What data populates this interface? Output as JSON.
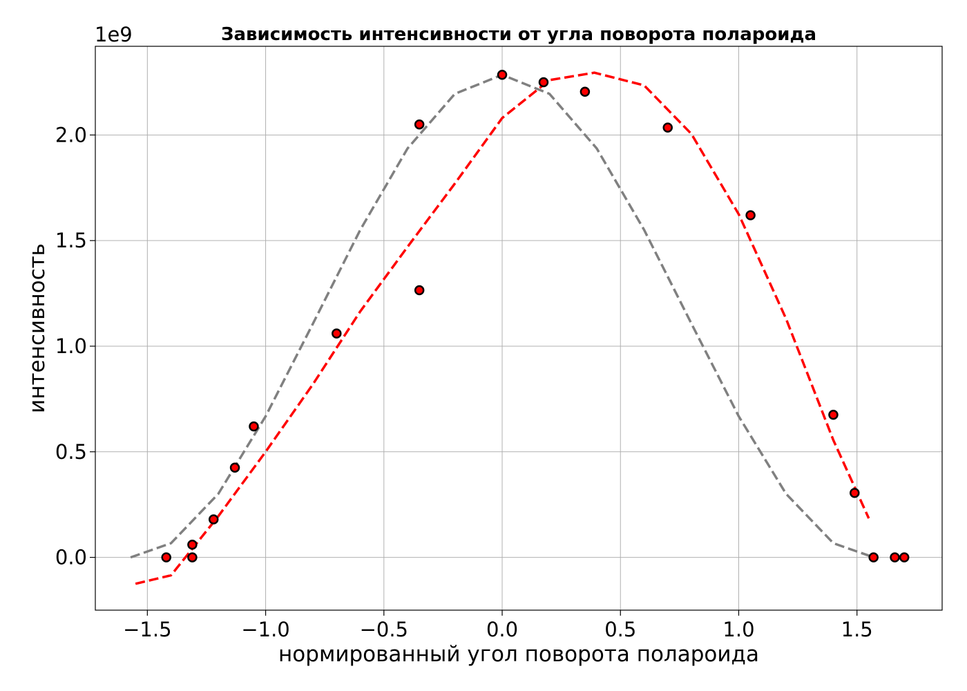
{
  "chart_data": {
    "type": "scatter",
    "title": "Зависимость интенсивности от угла поворота полароида",
    "xlabel": "нормированный угол поворота полароида",
    "ylabel": "интенсивность",
    "y_offset_text": "1e9",
    "y_scale": 1000000000,
    "xlim": [
      -1.72,
      1.86
    ],
    "ylim": [
      -0.25,
      2.42
    ],
    "x_ticks": [
      -1.5,
      -1.0,
      -0.5,
      0.0,
      0.5,
      1.0,
      1.5
    ],
    "x_tick_labels": [
      "−1.5",
      "−1.0",
      "−0.5",
      "0.0",
      "0.5",
      "1.0",
      "1.5"
    ],
    "y_ticks": [
      0.0,
      0.5,
      1.0,
      1.5,
      2.0
    ],
    "y_tick_labels": [
      "0.0",
      "0.5",
      "1.0",
      "1.5",
      "2.0"
    ],
    "grid": true,
    "series": [
      {
        "kind": "points",
        "color": "#ff0000",
        "edge_color": "#000000",
        "x": [
          -1.42,
          -1.31,
          -1.31,
          -1.22,
          -1.13,
          -1.05,
          -0.7,
          -0.35,
          -0.35,
          0.0,
          0.175,
          0.35,
          0.7,
          1.05,
          1.4,
          1.49,
          1.57,
          1.66,
          1.7
        ],
        "y": [
          0.0,
          0.06,
          0.0,
          0.18,
          0.425,
          0.62,
          1.06,
          2.05,
          1.265,
          2.285,
          2.25,
          2.205,
          2.035,
          1.62,
          0.675,
          0.305,
          0.0,
          0.0,
          0.0
        ]
      },
      {
        "kind": "dashed-curve",
        "color": "#808080",
        "x": [
          -1.5708,
          -1.4,
          -1.2,
          -1.0,
          -0.8,
          -0.6,
          -0.4,
          -0.2,
          0.0,
          0.2,
          0.4,
          0.6,
          0.8,
          1.0,
          1.2,
          1.4,
          1.5708
        ],
        "y": [
          0.0,
          0.067,
          0.301,
          0.668,
          1.107,
          1.551,
          1.936,
          2.195,
          2.285,
          2.195,
          1.936,
          1.551,
          1.107,
          0.668,
          0.301,
          0.067,
          0.0
        ]
      },
      {
        "kind": "dashed-curve",
        "color": "#ff0000",
        "x": [
          -1.55,
          -1.4,
          -1.2,
          -1.0,
          -0.8,
          -0.6,
          -0.4,
          -0.2,
          0.0,
          0.2,
          0.39,
          0.6,
          0.8,
          1.0,
          1.2,
          1.4,
          1.55
        ],
        "y": [
          -0.125,
          -0.085,
          0.195,
          0.5,
          0.82,
          1.165,
          1.47,
          1.77,
          2.08,
          2.26,
          2.295,
          2.235,
          2.005,
          1.625,
          1.13,
          0.555,
          0.185
        ]
      }
    ]
  }
}
